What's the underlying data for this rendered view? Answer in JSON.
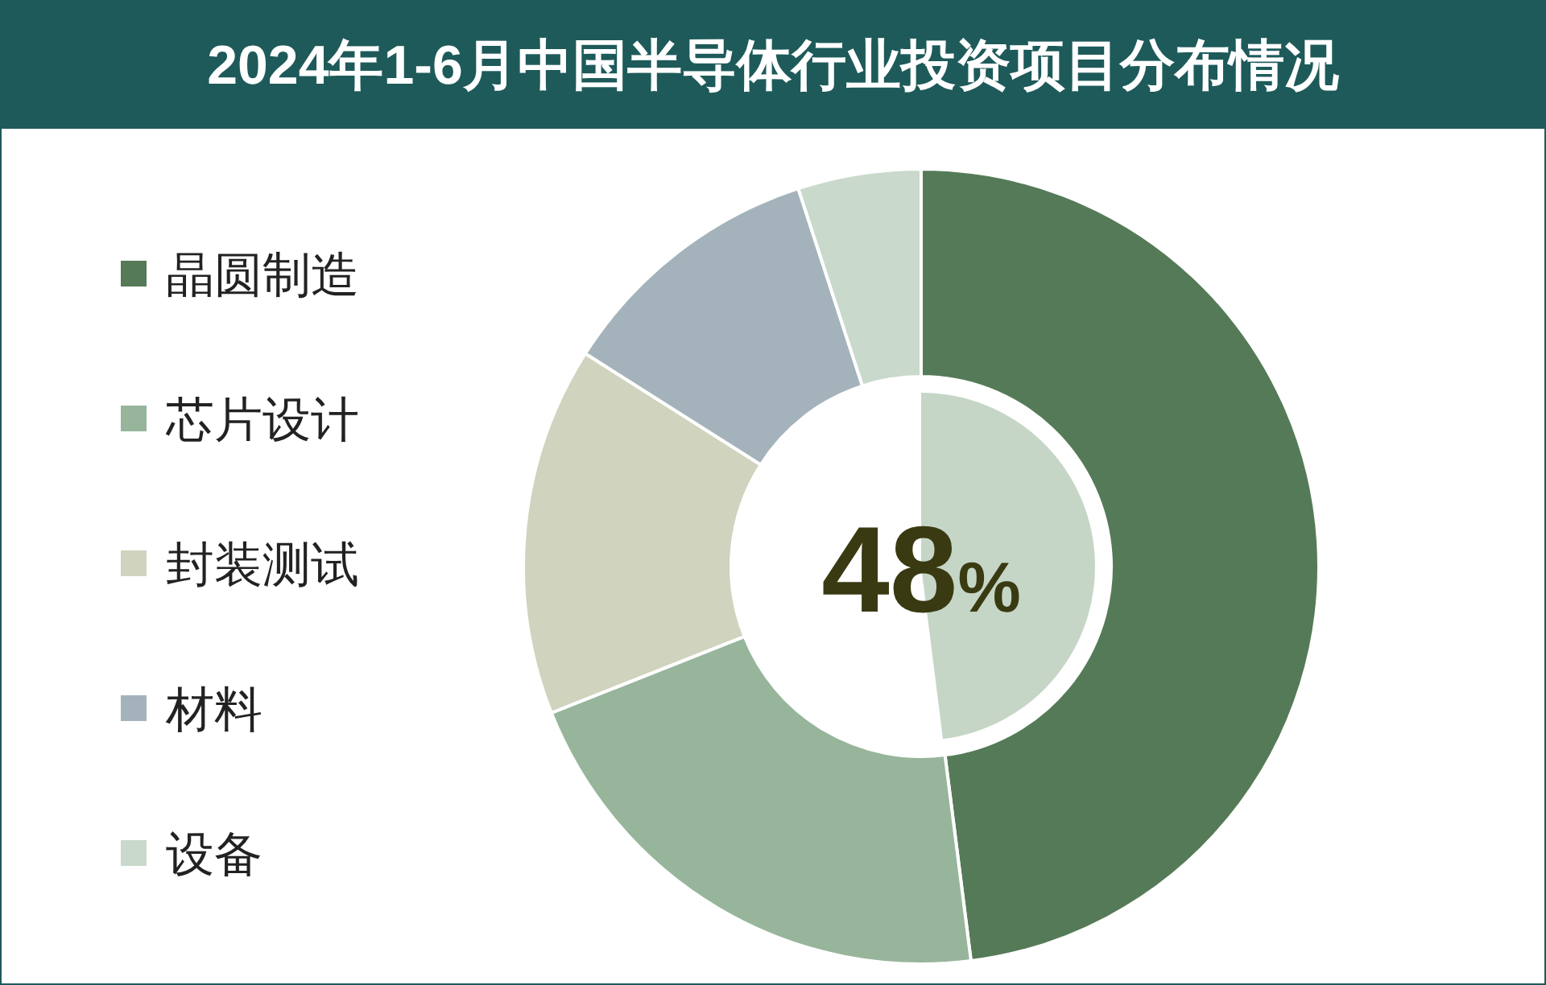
{
  "chart_data": {
    "type": "donut",
    "title": "2024年1-6月中国半导体行业投资项目分布情况",
    "categories": [
      "晶圆制造",
      "芯片设计",
      "封装测试",
      "材料",
      "设备"
    ],
    "values": [
      48,
      21,
      15,
      11,
      5
    ],
    "colors": [
      "#557a57",
      "#97b59b",
      "#d0d3bd",
      "#a4b3bb",
      "#c9d9cc"
    ],
    "legend": "left",
    "annotations": [
      "48%"
    ]
  }
}
